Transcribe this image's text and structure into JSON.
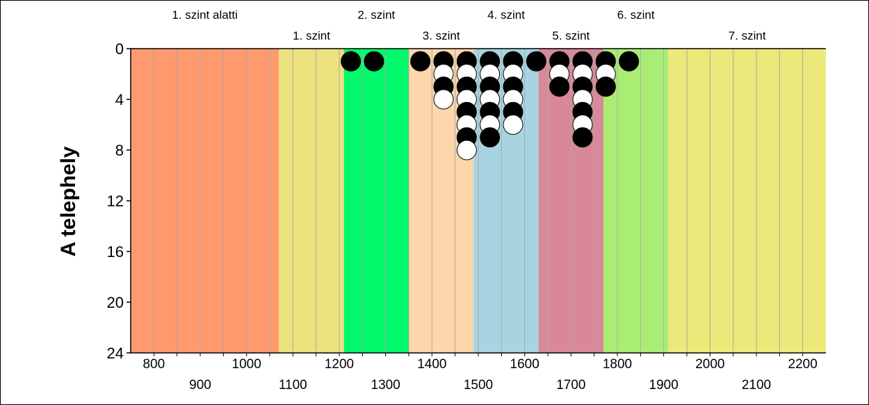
{
  "chart_data": {
    "type": "scatter",
    "title": "",
    "xlabel": "",
    "ylabel": "A telephely",
    "xlim": [
      750,
      2250
    ],
    "ylim": [
      0,
      24
    ],
    "y_inverted": true,
    "x_ticks_row1": [
      800,
      1000,
      1200,
      1400,
      1600,
      1800,
      2000,
      2200
    ],
    "x_ticks_row2": [
      900,
      1100,
      1300,
      1500,
      1700,
      1900,
      2100
    ],
    "x_minor_step": 50,
    "y_ticks": [
      0,
      4,
      8,
      12,
      16,
      20,
      24
    ],
    "bands": [
      {
        "label": "1. szint alatti",
        "from": 750,
        "to": 1070,
        "color": "#ff9a6e",
        "label_row": "top"
      },
      {
        "label": "1. szint",
        "from": 1070,
        "to": 1210,
        "color": "#ece27e",
        "label_row": "bottom"
      },
      {
        "label": "2. szint",
        "from": 1210,
        "to": 1350,
        "color": "#00f86a",
        "label_row": "top"
      },
      {
        "label": "3. szint",
        "from": 1350,
        "to": 1490,
        "color": "#fdd6ac",
        "label_row": "bottom"
      },
      {
        "label": "4. szint",
        "from": 1490,
        "to": 1630,
        "color": "#a8d4e2",
        "label_row": "top"
      },
      {
        "label": "5. szint",
        "from": 1630,
        "to": 1770,
        "color": "#d88898",
        "label_row": "bottom"
      },
      {
        "label": "6. szint",
        "from": 1770,
        "to": 1910,
        "color": "#a9ed75",
        "label_row": "top"
      },
      {
        "label": "7. szint",
        "from": 1910,
        "to": 2250,
        "color": "#ece97a",
        "label_row": "bottom"
      }
    ],
    "marker_colors": {
      "black": "#000000",
      "white": "#ffffff"
    },
    "points": [
      {
        "x": 1225,
        "y": 1,
        "fill": "black"
      },
      {
        "x": 1275,
        "y": 1,
        "fill": "black"
      },
      {
        "x": 1375,
        "y": 1,
        "fill": "black"
      },
      {
        "x": 1425,
        "y": 1,
        "fill": "black"
      },
      {
        "x": 1425,
        "y": 2,
        "fill": "white"
      },
      {
        "x": 1425,
        "y": 3,
        "fill": "black"
      },
      {
        "x": 1425,
        "y": 4,
        "fill": "white"
      },
      {
        "x": 1475,
        "y": 1,
        "fill": "black"
      },
      {
        "x": 1475,
        "y": 2,
        "fill": "white"
      },
      {
        "x": 1475,
        "y": 3,
        "fill": "black"
      },
      {
        "x": 1475,
        "y": 4,
        "fill": "white"
      },
      {
        "x": 1475,
        "y": 5,
        "fill": "black"
      },
      {
        "x": 1475,
        "y": 6,
        "fill": "white"
      },
      {
        "x": 1475,
        "y": 7,
        "fill": "black"
      },
      {
        "x": 1475,
        "y": 8,
        "fill": "white"
      },
      {
        "x": 1525,
        "y": 1,
        "fill": "black"
      },
      {
        "x": 1525,
        "y": 2,
        "fill": "white"
      },
      {
        "x": 1525,
        "y": 3,
        "fill": "black"
      },
      {
        "x": 1525,
        "y": 4,
        "fill": "white"
      },
      {
        "x": 1525,
        "y": 5,
        "fill": "black"
      },
      {
        "x": 1525,
        "y": 6,
        "fill": "white"
      },
      {
        "x": 1525,
        "y": 7,
        "fill": "black"
      },
      {
        "x": 1575,
        "y": 1,
        "fill": "black"
      },
      {
        "x": 1575,
        "y": 2,
        "fill": "white"
      },
      {
        "x": 1575,
        "y": 3,
        "fill": "black"
      },
      {
        "x": 1575,
        "y": 4,
        "fill": "white"
      },
      {
        "x": 1575,
        "y": 5,
        "fill": "black"
      },
      {
        "x": 1575,
        "y": 6,
        "fill": "white"
      },
      {
        "x": 1625,
        "y": 1,
        "fill": "black"
      },
      {
        "x": 1675,
        "y": 1,
        "fill": "black"
      },
      {
        "x": 1675,
        "y": 2,
        "fill": "white"
      },
      {
        "x": 1675,
        "y": 3,
        "fill": "black"
      },
      {
        "x": 1725,
        "y": 1,
        "fill": "black"
      },
      {
        "x": 1725,
        "y": 2,
        "fill": "white"
      },
      {
        "x": 1725,
        "y": 3,
        "fill": "black"
      },
      {
        "x": 1725,
        "y": 4,
        "fill": "white"
      },
      {
        "x": 1725,
        "y": 5,
        "fill": "black"
      },
      {
        "x": 1725,
        "y": 6,
        "fill": "white"
      },
      {
        "x": 1725,
        "y": 7,
        "fill": "black"
      },
      {
        "x": 1775,
        "y": 1,
        "fill": "black"
      },
      {
        "x": 1775,
        "y": 2,
        "fill": "white"
      },
      {
        "x": 1775,
        "y": 3,
        "fill": "black"
      },
      {
        "x": 1825,
        "y": 1,
        "fill": "black"
      }
    ]
  }
}
